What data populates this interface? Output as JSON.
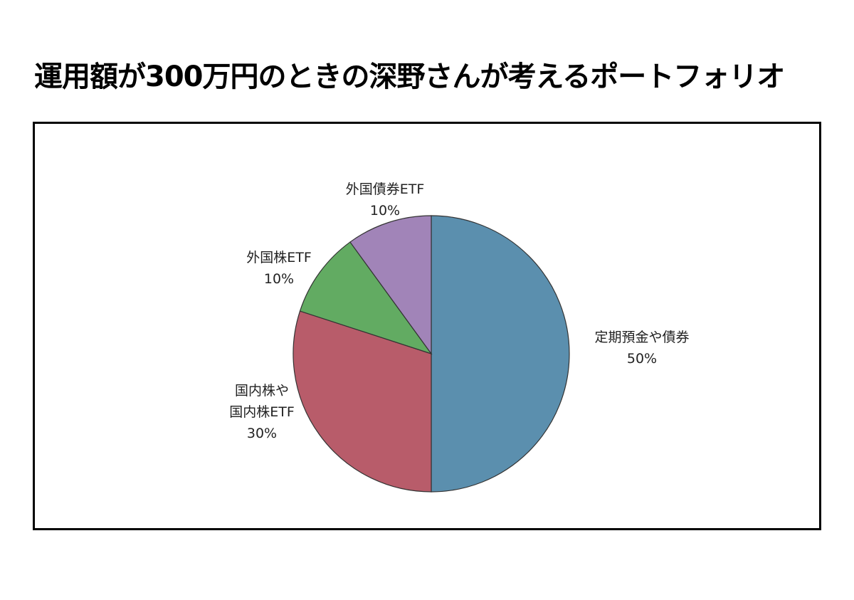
{
  "chart_data": {
    "type": "pie",
    "title": "運用額が300万円のときの深野さんが考えるポートフォリオ",
    "slices": [
      {
        "label_lines": [
          "定期預金や債券",
          "50%"
        ],
        "value": 50,
        "color": "#5b8fae"
      },
      {
        "label_lines": [
          "国内株や",
          "国内株ETF",
          "30%"
        ],
        "value": 30,
        "color": "#b85c6a"
      },
      {
        "label_lines": [
          "外国株ETF",
          "10%"
        ],
        "value": 10,
        "color": "#62ab62"
      },
      {
        "label_lines": [
          "外国債券ETF",
          "10%"
        ],
        "value": 10,
        "color": "#a184b8"
      }
    ],
    "start_angle_deg": 0,
    "direction": "clockwise",
    "legend": "none"
  }
}
